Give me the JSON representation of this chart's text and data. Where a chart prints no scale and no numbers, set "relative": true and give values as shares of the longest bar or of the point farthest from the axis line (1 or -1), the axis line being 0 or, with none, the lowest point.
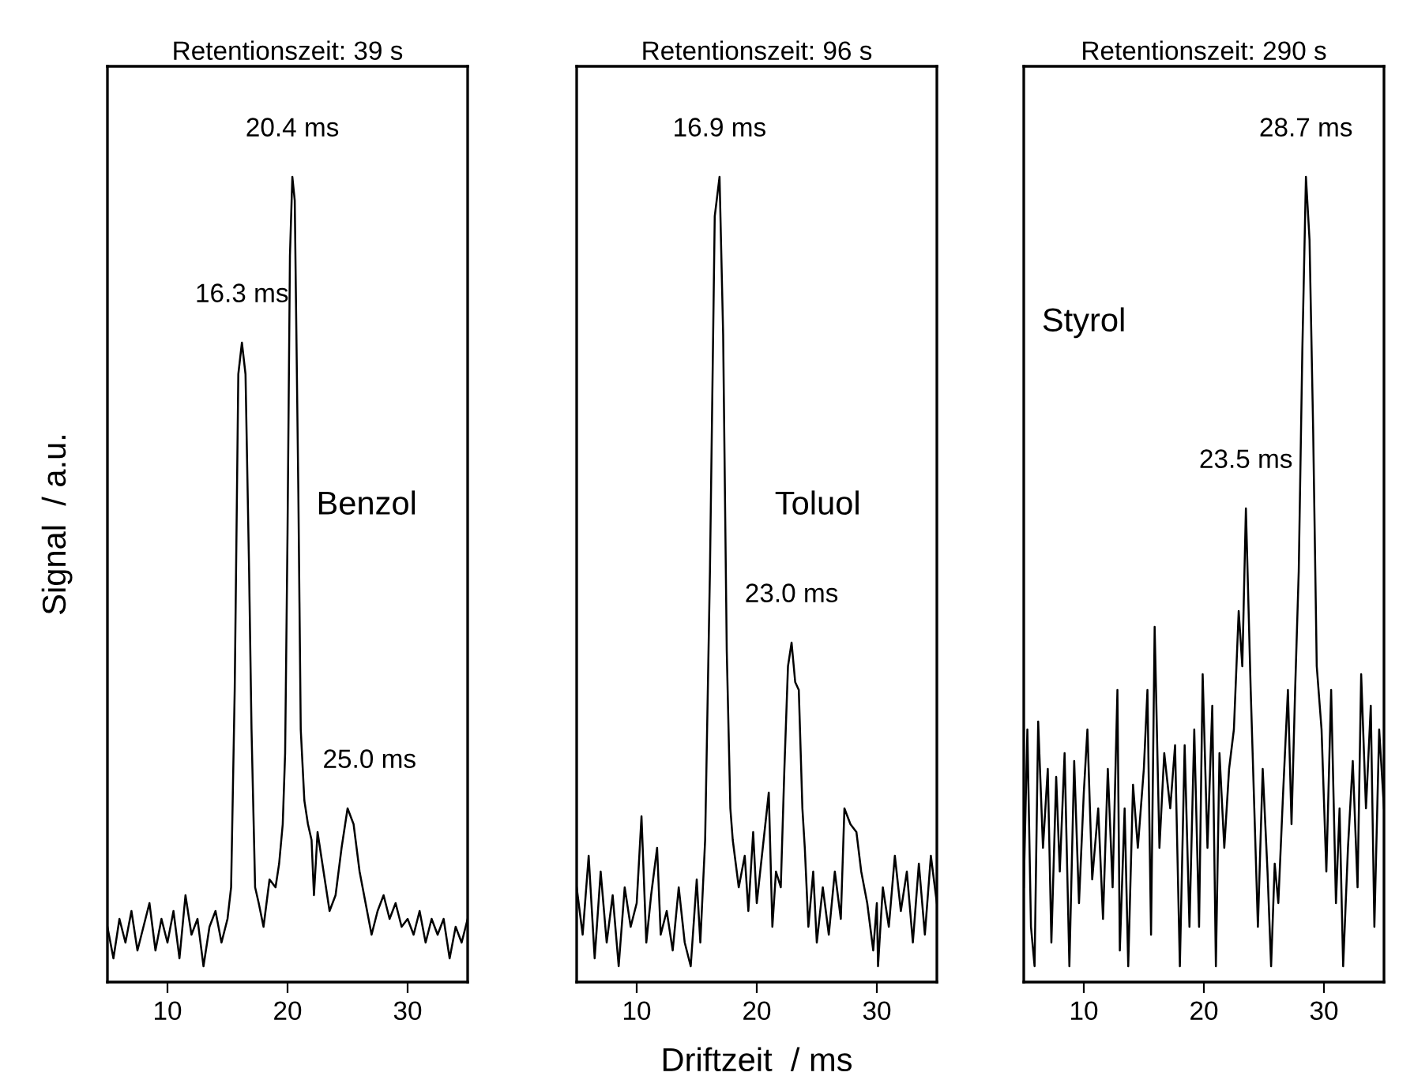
{
  "chart_data": [
    {
      "type": "line",
      "title": "Retentionszeit: 39 s",
      "ylabel": "Signal  / a.u.",
      "relative": true,
      "xlim": [
        5,
        35
      ],
      "xticks": [
        10,
        20,
        30
      ],
      "tick_labels": "x",
      "grid": false,
      "legend": false,
      "annotations": [
        {
          "text": "16.3 ms",
          "x": 16.2,
          "y": 0.79
        },
        {
          "text": "20.4 ms",
          "x": 20.4,
          "y": 1.0
        },
        {
          "text": "25.0 ms",
          "x": 25.0,
          "y": 0.2
        },
        "Benzol"
      ],
      "series": [
        {
          "color": "#000000",
          "x": [
            5.0,
            5.5,
            6.0,
            6.5,
            7.0,
            7.5,
            8.0,
            8.5,
            9.0,
            9.5,
            10.0,
            10.5,
            11.0,
            11.5,
            12.0,
            12.5,
            13.0,
            13.5,
            14.0,
            14.5,
            15.0,
            15.3,
            15.6,
            15.9,
            16.2,
            16.5,
            16.8,
            17.0,
            17.3,
            17.6,
            18.0,
            18.5,
            19.0,
            19.3,
            19.6,
            19.8,
            20.0,
            20.2,
            20.4,
            20.6,
            20.9,
            21.1,
            21.4,
            21.7,
            22.0,
            22.2,
            22.5,
            23.0,
            23.5,
            24.0,
            24.5,
            25.0,
            25.5,
            26.0,
            26.5,
            27.0,
            27.5,
            28.0,
            28.5,
            29.0,
            29.5,
            30.0,
            30.5,
            31.0,
            31.5,
            32.0,
            32.5,
            33.0,
            33.5,
            34.0,
            34.5,
            35.0
          ],
          "values": [
            0.05,
            0.01,
            0.06,
            0.03,
            0.07,
            0.02,
            0.05,
            0.08,
            0.02,
            0.06,
            0.03,
            0.07,
            0.01,
            0.09,
            0.04,
            0.06,
            0.0,
            0.05,
            0.07,
            0.03,
            0.06,
            0.1,
            0.35,
            0.75,
            0.79,
            0.75,
            0.5,
            0.3,
            0.1,
            0.08,
            0.05,
            0.11,
            0.1,
            0.13,
            0.18,
            0.27,
            0.55,
            0.9,
            1.0,
            0.97,
            0.6,
            0.3,
            0.21,
            0.18,
            0.16,
            0.09,
            0.17,
            0.12,
            0.07,
            0.09,
            0.15,
            0.2,
            0.18,
            0.12,
            0.08,
            0.04,
            0.07,
            0.09,
            0.06,
            0.08,
            0.05,
            0.06,
            0.04,
            0.07,
            0.03,
            0.06,
            0.04,
            0.06,
            0.01,
            0.05,
            0.03,
            0.06
          ]
        }
      ]
    },
    {
      "type": "line",
      "title": "Retentionszeit: 96 s",
      "xlabel": "Driftzeit  / ms",
      "relative": true,
      "xlim": [
        5,
        35
      ],
      "xticks": [
        10,
        20,
        30
      ],
      "tick_labels": "x",
      "grid": false,
      "legend": false,
      "annotations": [
        {
          "text": "16.9 ms",
          "x": 16.9,
          "y": 1.0
        },
        {
          "text": "23.0 ms",
          "x": 22.9,
          "y": 0.41
        },
        "Toluol"
      ],
      "series": [
        {
          "color": "#000000",
          "x": [
            5.0,
            5.5,
            6.0,
            6.5,
            7.0,
            7.5,
            8.0,
            8.5,
            9.0,
            9.5,
            10.0,
            10.4,
            10.8,
            11.2,
            11.7,
            12.0,
            12.5,
            13.0,
            13.5,
            14.0,
            14.5,
            15.0,
            15.3,
            15.7,
            16.1,
            16.5,
            16.9,
            17.2,
            17.5,
            17.8,
            18.0,
            18.5,
            19.0,
            19.3,
            19.7,
            20.0,
            20.5,
            21.0,
            21.3,
            21.6,
            22.0,
            22.3,
            22.6,
            22.9,
            23.2,
            23.5,
            23.8,
            24.0,
            24.3,
            24.7,
            25.0,
            25.5,
            26.0,
            26.5,
            27.0,
            27.3,
            27.8,
            28.3,
            28.7,
            29.2,
            29.7,
            30.0,
            30.1,
            30.5,
            31.0,
            31.5,
            32.0,
            32.5,
            33.0,
            33.5,
            34.0,
            34.5,
            35.0
          ],
          "values": [
            0.1,
            0.04,
            0.14,
            0.01,
            0.12,
            0.03,
            0.09,
            0.0,
            0.1,
            0.05,
            0.08,
            0.19,
            0.03,
            0.09,
            0.15,
            0.04,
            0.07,
            0.02,
            0.1,
            0.03,
            0.0,
            0.11,
            0.03,
            0.16,
            0.5,
            0.95,
            1.0,
            0.8,
            0.4,
            0.2,
            0.16,
            0.1,
            0.14,
            0.07,
            0.17,
            0.08,
            0.15,
            0.22,
            0.05,
            0.12,
            0.1,
            0.25,
            0.38,
            0.41,
            0.36,
            0.35,
            0.2,
            0.15,
            0.05,
            0.12,
            0.03,
            0.1,
            0.04,
            0.12,
            0.06,
            0.2,
            0.18,
            0.17,
            0.12,
            0.08,
            0.02,
            0.08,
            0.0,
            0.1,
            0.05,
            0.14,
            0.07,
            0.12,
            0.03,
            0.13,
            0.04,
            0.14,
            0.08
          ]
        }
      ]
    },
    {
      "type": "line",
      "title": "Retentionszeit: 290 s",
      "relative": true,
      "xlim": [
        5,
        35
      ],
      "xticks": [
        10,
        20,
        30
      ],
      "tick_labels": "x",
      "grid": false,
      "legend": false,
      "annotations": [
        {
          "text": "23.5 ms",
          "x": 23.5,
          "y": 0.58
        },
        {
          "text": "28.7 ms",
          "x": 28.5,
          "y": 1.0
        },
        "Styrol"
      ],
      "series": [
        {
          "color": "#000000",
          "x": [
            5.0,
            5.3,
            5.6,
            5.9,
            6.2,
            6.6,
            7.0,
            7.3,
            7.7,
            8.0,
            8.4,
            8.8,
            9.2,
            9.6,
            10.0,
            10.3,
            10.7,
            11.2,
            11.6,
            12.0,
            12.4,
            12.8,
            13.0,
            13.4,
            13.7,
            14.1,
            14.5,
            15.0,
            15.3,
            15.6,
            15.9,
            16.3,
            16.7,
            17.2,
            17.6,
            18.0,
            18.4,
            18.8,
            19.2,
            19.6,
            19.9,
            20.3,
            20.7,
            21.0,
            21.3,
            21.7,
            22.1,
            22.5,
            22.9,
            23.2,
            23.5,
            23.9,
            24.2,
            24.5,
            24.9,
            25.3,
            25.6,
            25.9,
            26.2,
            26.6,
            27.0,
            27.3,
            27.6,
            27.9,
            28.2,
            28.5,
            28.8,
            29.1,
            29.4,
            29.8,
            30.2,
            30.6,
            31.0,
            31.3,
            31.6,
            32.0,
            32.4,
            32.8,
            33.1,
            33.5,
            33.9,
            34.2,
            34.6,
            35.0
          ],
          "values": [
            0.1,
            0.3,
            0.05,
            0.0,
            0.31,
            0.15,
            0.25,
            0.03,
            0.24,
            0.12,
            0.27,
            0.0,
            0.26,
            0.08,
            0.22,
            0.3,
            0.11,
            0.2,
            0.06,
            0.25,
            0.1,
            0.35,
            0.02,
            0.2,
            0.0,
            0.23,
            0.15,
            0.25,
            0.35,
            0.04,
            0.43,
            0.15,
            0.27,
            0.2,
            0.28,
            0.0,
            0.28,
            0.05,
            0.3,
            0.05,
            0.37,
            0.15,
            0.33,
            0.0,
            0.27,
            0.15,
            0.25,
            0.3,
            0.45,
            0.38,
            0.58,
            0.35,
            0.2,
            0.05,
            0.25,
            0.12,
            0.0,
            0.13,
            0.08,
            0.22,
            0.35,
            0.18,
            0.35,
            0.5,
            0.78,
            1.0,
            0.92,
            0.68,
            0.38,
            0.3,
            0.12,
            0.35,
            0.08,
            0.2,
            0.0,
            0.15,
            0.26,
            0.1,
            0.37,
            0.2,
            0.33,
            0.05,
            0.3,
            0.2
          ]
        }
      ]
    }
  ]
}
